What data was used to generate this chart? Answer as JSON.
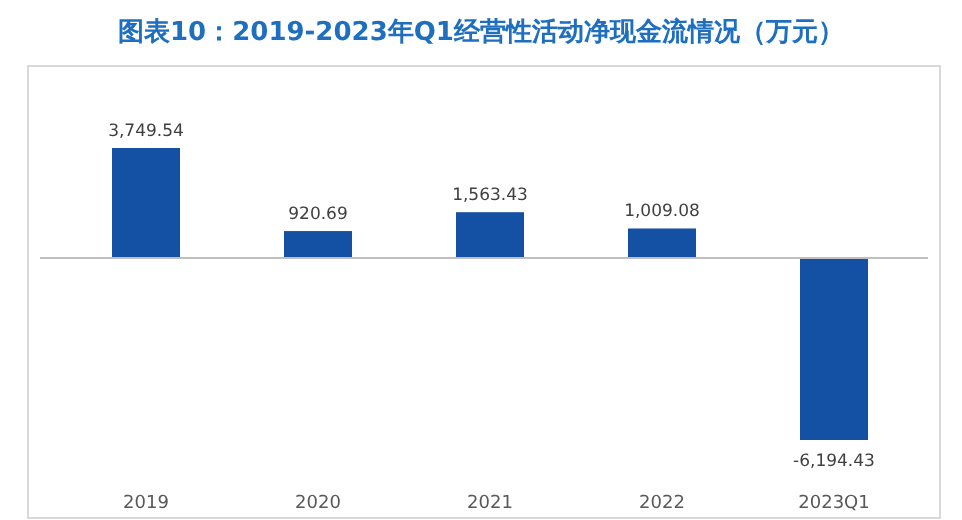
{
  "chart_data": {
    "type": "bar",
    "title": "图表10：2019-2023年Q1经营性活动净现金流情况（万元）",
    "categories": [
      "2019",
      "2020",
      "2021",
      "2022",
      "2023Q1"
    ],
    "values": [
      3749.54,
      920.69,
      1563.43,
      1009.08,
      -6194.43
    ],
    "value_labels": [
      "3,749.54",
      "920.69",
      "1,563.43",
      "1,009.08",
      "-6,194.43"
    ],
    "color": "#1450a3"
  }
}
